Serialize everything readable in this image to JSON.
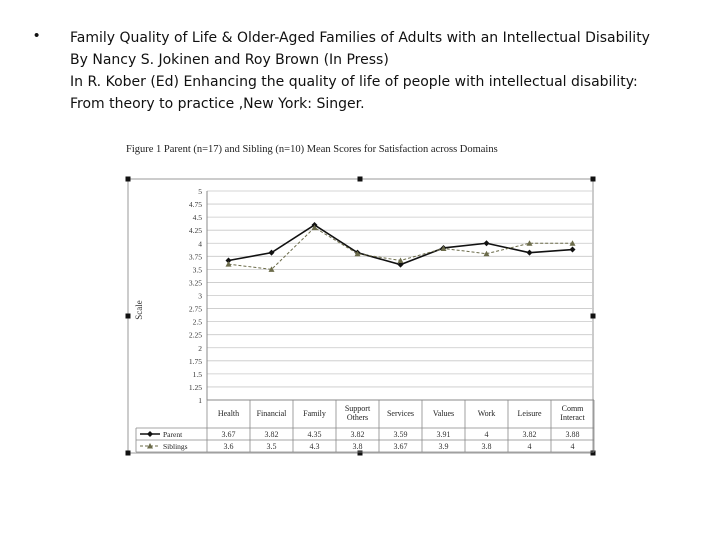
{
  "citation": {
    "bullet": "•",
    "lines": [
      "Family Quality of Life & Older-Aged Families of Adults with an Intellectual Disability",
      "By Nancy S. Jokinen and Roy Brown (In Press)",
      "In  R. Kober (Ed) Enhancing the quality of life of people with intellectual disability:",
      "From theory to practice ,New York: Singer."
    ]
  },
  "chart_data": {
    "type": "line",
    "title": "Figure 1 Parent (n=17) and Sibling (n=10) Mean Scores for Satisfaction across Domains",
    "ylabel": "Scale",
    "xlabel": "",
    "ylim": [
      1,
      5
    ],
    "yticks": [
      "1",
      "1.25",
      "1.5",
      "1.75",
      "2",
      "2.25",
      "2.5",
      "2.75",
      "3",
      "3.25",
      "3.5",
      "3.75",
      "4",
      "4.25",
      "4.5",
      "4.75",
      "5"
    ],
    "categories": [
      [
        "Health"
      ],
      [
        "Financial"
      ],
      [
        "Family"
      ],
      [
        "Support",
        "Others"
      ],
      [
        "Services"
      ],
      [
        "Values"
      ],
      [
        "Work"
      ],
      [
        "Leisure"
      ],
      [
        "Comm",
        "Interact"
      ]
    ],
    "series": [
      {
        "name": "Parent",
        "values": [
          3.67,
          3.82,
          4.35,
          3.82,
          3.59,
          3.91,
          4,
          3.82,
          3.88
        ],
        "labels": [
          "3.67",
          "3.82",
          "4.35",
          "3.82",
          "3.59",
          "3.91",
          "4",
          "3.82",
          "3.88"
        ],
        "color": "#111111",
        "dash": false,
        "marker": "diamond"
      },
      {
        "name": "Siblings",
        "values": [
          3.6,
          3.5,
          4.3,
          3.8,
          3.67,
          3.9,
          3.8,
          4,
          4
        ],
        "labels": [
          "3.6",
          "3.5",
          "4.3",
          "3.8",
          "3.67",
          "3.9",
          "3.8",
          "4",
          "4"
        ],
        "color": "#6b6b4a",
        "dash": true,
        "marker": "triangle"
      }
    ],
    "grid": true,
    "legend": "data-table"
  }
}
